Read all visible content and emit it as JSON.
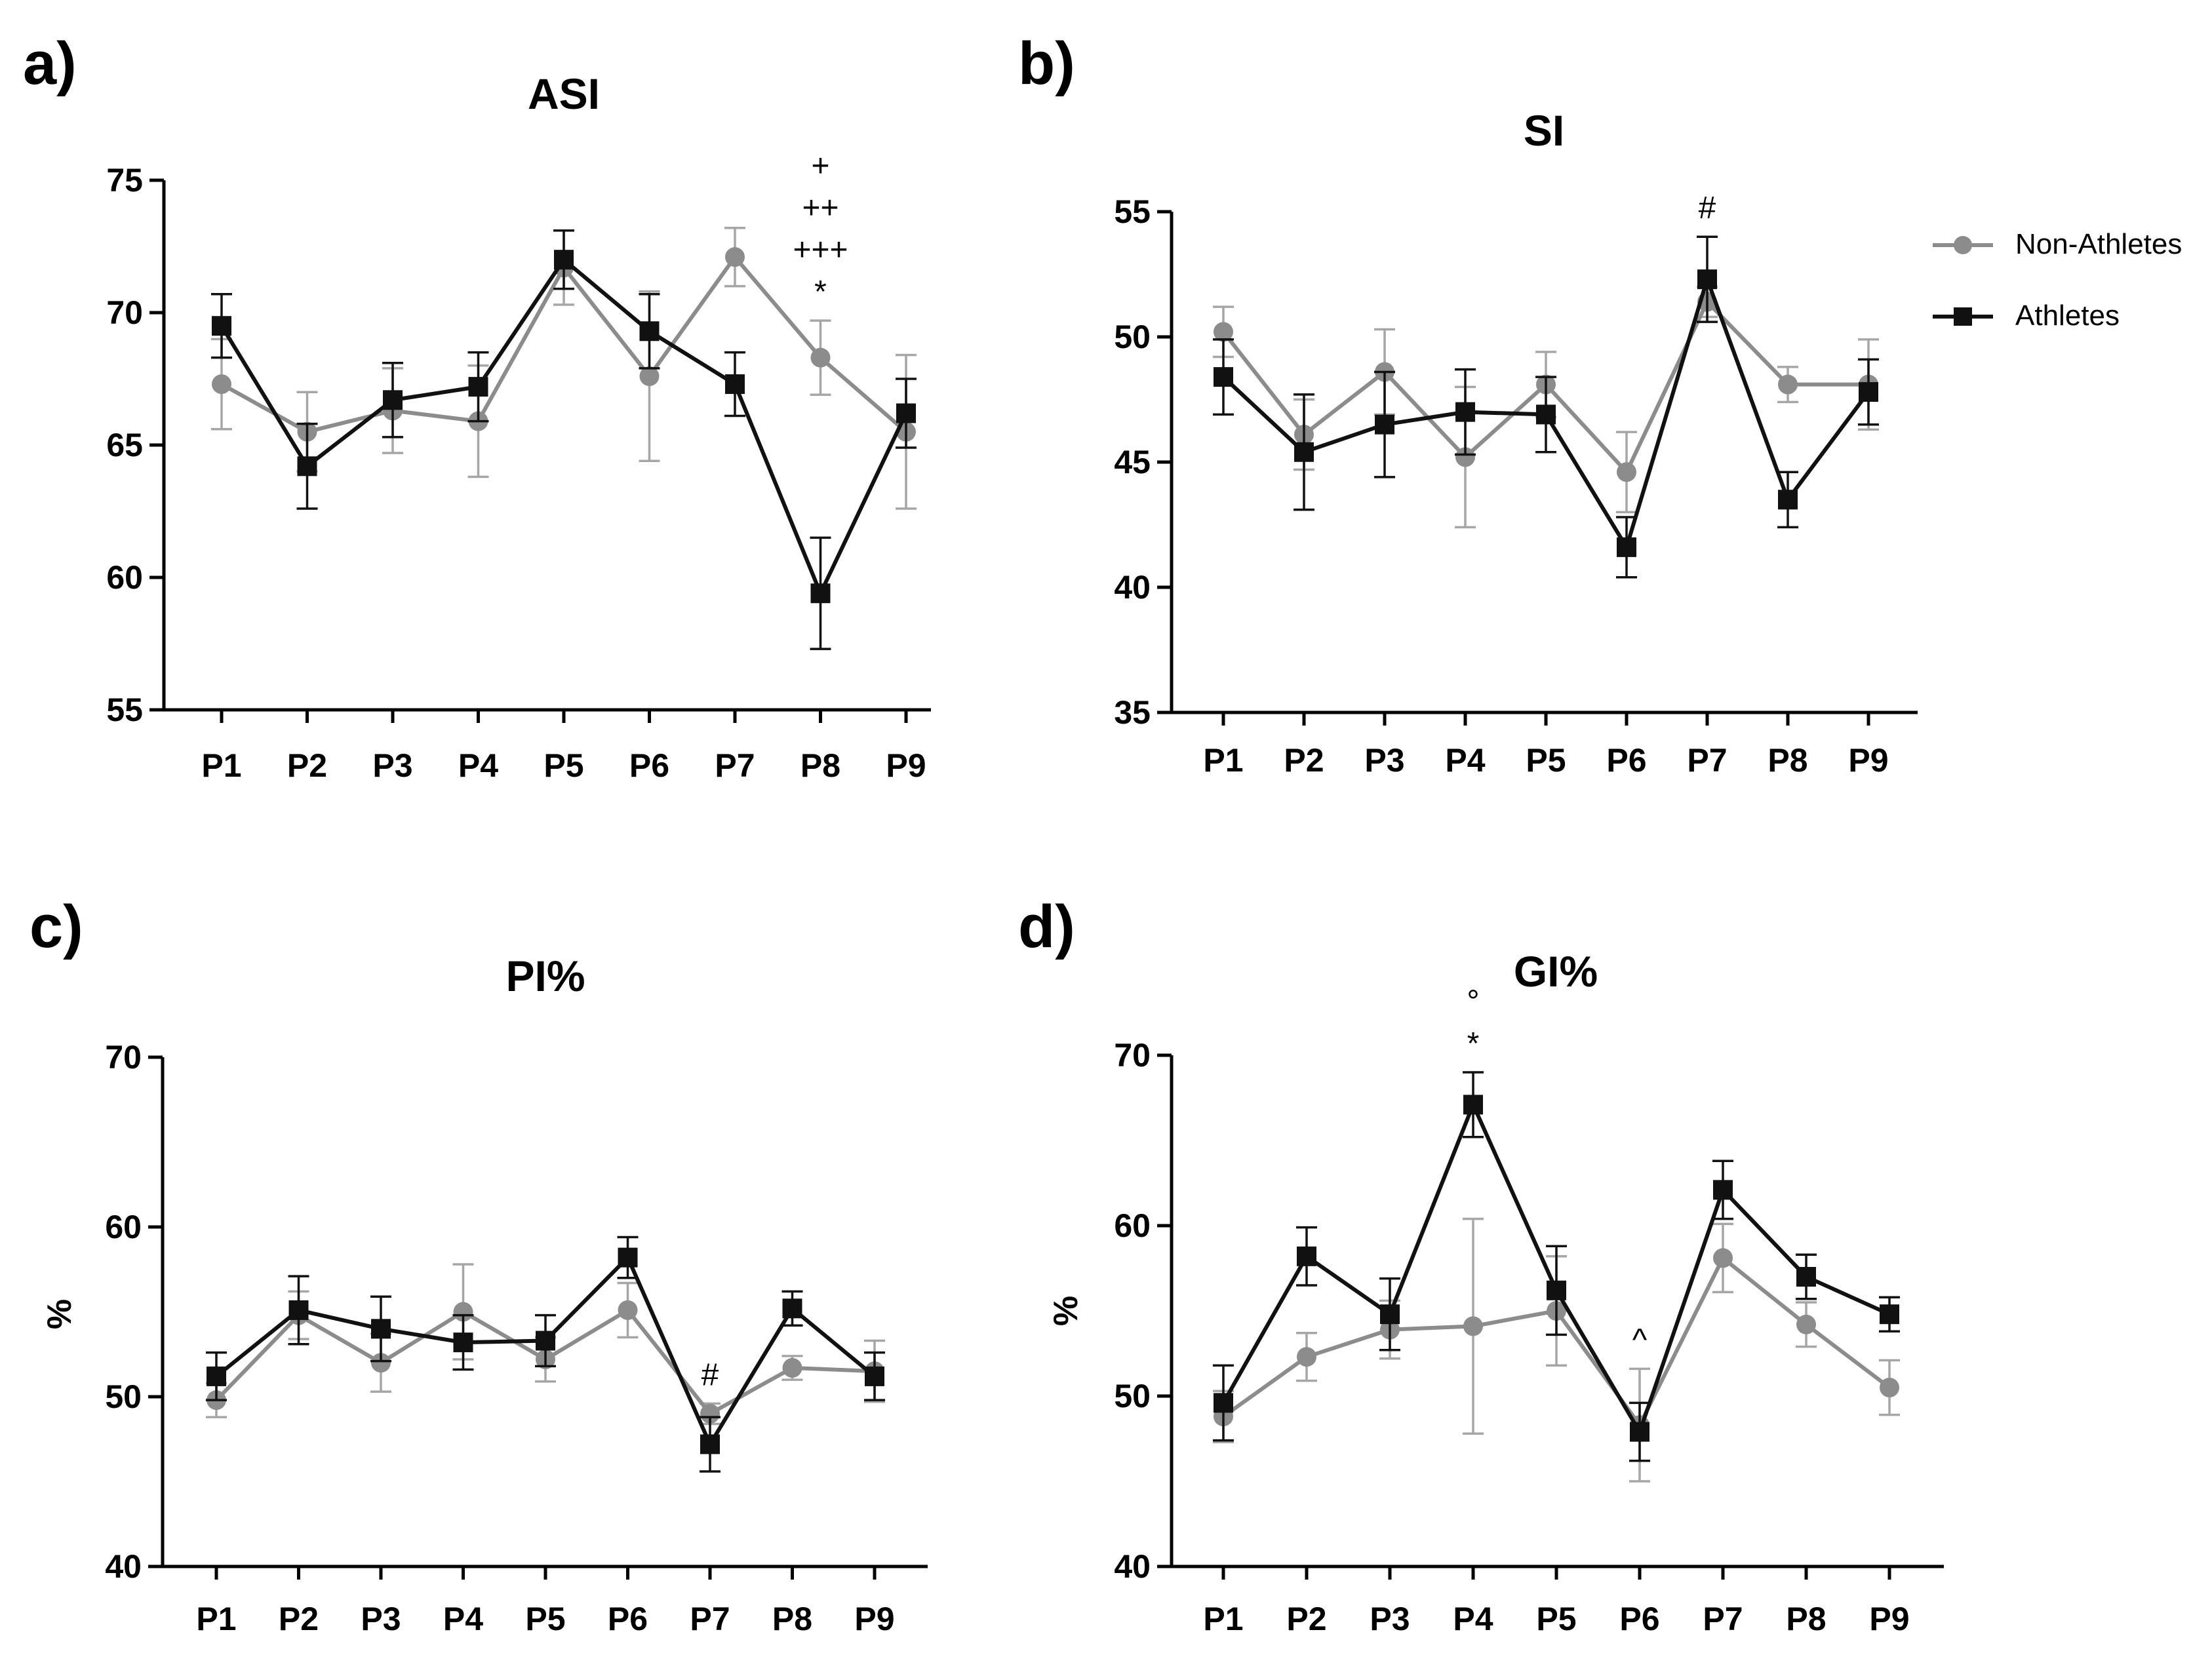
{
  "colors": {
    "non_athletes": "#8c8c8c",
    "athletes": "#111111",
    "axis": "#000000"
  },
  "legend": {
    "items": [
      "Non-Athletes",
      "Athletes"
    ],
    "placement": "top-right"
  },
  "chart_data": [
    {
      "type": "line",
      "panel": "a)",
      "title": "ASI",
      "ylabel": "",
      "xlabel": "",
      "categories": [
        "P1",
        "P2",
        "P3",
        "P4",
        "P5",
        "P6",
        "P7",
        "P8",
        "P9"
      ],
      "ylim": [
        55,
        75
      ],
      "yticks": [
        55,
        60,
        65,
        70,
        75
      ],
      "series": [
        {
          "name": "Non-Athletes",
          "values": [
            67.3,
            65.5,
            66.3,
            65.9,
            71.7,
            67.6,
            72.1,
            68.3,
            65.5
          ],
          "errors": [
            1.7,
            1.5,
            1.6,
            2.1,
            1.4,
            3.2,
            1.1,
            1.4,
            2.9
          ]
        },
        {
          "name": "Athletes",
          "values": [
            69.5,
            64.2,
            66.7,
            67.2,
            72.0,
            69.3,
            67.3,
            59.4,
            66.2
          ],
          "errors": [
            1.2,
            1.6,
            1.4,
            1.3,
            1.1,
            1.4,
            1.2,
            2.1,
            1.3
          ]
        }
      ],
      "annotations": [
        {
          "category": "P8",
          "lines": [
            "+",
            "++",
            "+++",
            "*"
          ]
        }
      ]
    },
    {
      "type": "line",
      "panel": "b)",
      "title": "SI",
      "ylabel": "",
      "xlabel": "",
      "categories": [
        "P1",
        "P2",
        "P3",
        "P4",
        "P5",
        "P6",
        "P7",
        "P8",
        "P9"
      ],
      "ylim": [
        35,
        55
      ],
      "yticks": [
        35,
        40,
        45,
        50,
        55
      ],
      "series": [
        {
          "name": "Non-Athletes",
          "values": [
            50.2,
            46.1,
            48.6,
            45.2,
            48.1,
            44.6,
            51.4,
            48.1,
            48.1
          ],
          "errors": [
            1.0,
            1.4,
            1.7,
            2.8,
            1.3,
            1.6,
            0.6,
            0.7,
            1.8
          ]
        },
        {
          "name": "Athletes",
          "values": [
            48.4,
            45.4,
            46.5,
            47.0,
            46.9,
            41.6,
            52.3,
            43.5,
            47.8
          ],
          "errors": [
            1.5,
            2.3,
            2.1,
            1.7,
            1.5,
            1.2,
            1.7,
            1.1,
            1.3
          ]
        }
      ],
      "annotations": [
        {
          "category": "P7",
          "lines": [
            "#"
          ]
        }
      ]
    },
    {
      "type": "line",
      "panel": "c)",
      "title": "PI%",
      "ylabel": "%",
      "xlabel": "",
      "categories": [
        "P1",
        "P2",
        "P3",
        "P4",
        "P5",
        "P6",
        "P7",
        "P8",
        "P9"
      ],
      "ylim": [
        40,
        70
      ],
      "yticks": [
        40,
        50,
        60,
        70
      ],
      "series": [
        {
          "name": "Non-Athletes",
          "values": [
            49.8,
            54.8,
            52.0,
            55.0,
            52.2,
            55.1,
            49.0,
            51.7,
            51.5
          ],
          "errors": [
            1.0,
            1.4,
            1.7,
            2.8,
            1.3,
            1.6,
            0.6,
            0.7,
            1.8
          ]
        },
        {
          "name": "Athletes",
          "values": [
            51.2,
            55.1,
            54.0,
            53.2,
            53.3,
            58.2,
            47.2,
            55.2,
            51.2
          ],
          "errors": [
            1.4,
            2.0,
            1.9,
            1.6,
            1.5,
            1.2,
            1.6,
            1.0,
            1.4
          ]
        }
      ],
      "annotations": [
        {
          "category": "P7",
          "lines": [
            "#"
          ]
        }
      ]
    },
    {
      "type": "line",
      "panel": "d)",
      "title": "GI%",
      "ylabel": "%",
      "xlabel": "",
      "categories": [
        "P1",
        "P2",
        "P3",
        "P4",
        "P5",
        "P6",
        "P7",
        "P8",
        "P9"
      ],
      "ylim": [
        40,
        70
      ],
      "yticks": [
        40,
        50,
        60,
        70
      ],
      "series": [
        {
          "name": "Non-Athletes",
          "values": [
            48.8,
            52.3,
            53.9,
            54.1,
            55.0,
            48.3,
            58.1,
            54.2,
            50.5
          ],
          "errors": [
            1.5,
            1.4,
            1.7,
            6.3,
            3.2,
            3.3,
            2.0,
            1.3,
            1.6
          ]
        },
        {
          "name": "Athletes",
          "values": [
            49.6,
            58.2,
            54.8,
            67.1,
            56.2,
            47.9,
            62.1,
            57.0,
            54.8
          ],
          "errors": [
            2.2,
            1.7,
            2.1,
            1.9,
            2.6,
            1.7,
            1.7,
            1.3,
            1.0
          ]
        }
      ],
      "annotations": [
        {
          "category": "P4",
          "lines": [
            "°",
            "*"
          ]
        },
        {
          "category": "P6",
          "lines": [
            "^"
          ]
        }
      ]
    }
  ]
}
